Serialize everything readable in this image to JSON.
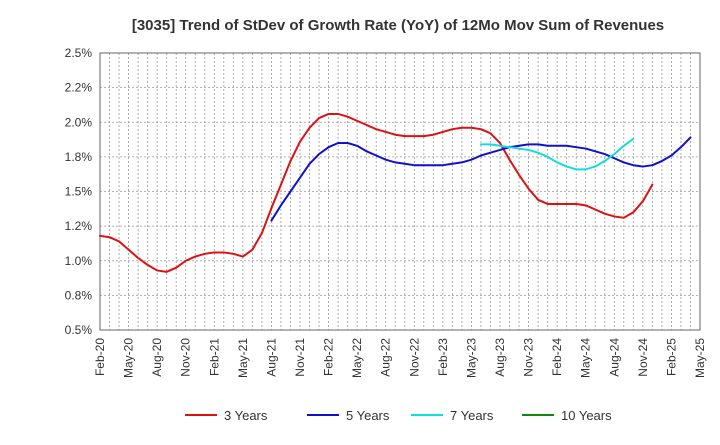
{
  "chart_data": {
    "type": "line",
    "title": "[3035]  Trend of StDev of Growth Rate (YoY) of 12Mo Mov Sum of Revenues",
    "xlabel": "",
    "ylabel": "",
    "ylim": [
      0.5,
      2.5
    ],
    "y_ticks": [
      "0.5%",
      "0.8%",
      "1.0%",
      "1.2%",
      "1.5%",
      "1.8%",
      "2.0%",
      "2.2%",
      "2.5%"
    ],
    "x_tick_labels": [
      "Feb-20",
      "May-20",
      "Aug-20",
      "Nov-20",
      "Feb-21",
      "May-21",
      "Aug-21",
      "Nov-21",
      "Feb-22",
      "May-22",
      "Aug-22",
      "Nov-22",
      "Feb-23",
      "May-23",
      "Aug-23",
      "Nov-23",
      "Feb-24",
      "May-24",
      "Aug-24",
      "Nov-24",
      "Feb-25",
      "May-25"
    ],
    "grid": true,
    "legend_position": "bottom",
    "series": [
      {
        "name": "3 Years",
        "color": "#dd1111",
        "start_index": 0,
        "values": [
          1.18,
          1.17,
          1.14,
          1.08,
          1.02,
          0.97,
          0.93,
          0.92,
          0.95,
          1.0,
          1.03,
          1.05,
          1.06,
          1.06,
          1.05,
          1.03,
          1.08,
          1.2,
          1.38,
          1.55,
          1.72,
          1.86,
          1.96,
          2.03,
          2.06,
          2.06,
          2.04,
          2.01,
          1.98,
          1.95,
          1.93,
          1.91,
          1.9,
          1.9,
          1.9,
          1.91,
          1.93,
          1.95,
          1.96,
          1.96,
          1.95,
          1.92,
          1.85,
          1.73,
          1.62,
          1.52,
          1.44,
          1.41,
          1.41,
          1.41,
          1.41,
          1.4,
          1.37,
          1.34,
          1.32,
          1.31,
          1.35,
          1.43,
          1.55
        ]
      },
      {
        "name": "5 Years",
        "color": "#1111cc",
        "start_index": 18,
        "values": [
          1.29,
          1.4,
          1.5,
          1.6,
          1.7,
          1.77,
          1.82,
          1.85,
          1.85,
          1.83,
          1.79,
          1.76,
          1.73,
          1.71,
          1.7,
          1.69,
          1.69,
          1.69,
          1.69,
          1.7,
          1.71,
          1.73,
          1.76,
          1.78,
          1.8,
          1.82,
          1.83,
          1.84,
          1.84,
          1.83,
          1.83,
          1.83,
          1.82,
          1.81,
          1.79,
          1.77,
          1.74,
          1.71,
          1.69,
          1.68,
          1.69,
          1.72,
          1.76,
          1.82,
          1.89
        ]
      },
      {
        "name": "7 Years",
        "color": "#11dddd",
        "start_index": 40,
        "values": [
          1.84,
          1.84,
          1.83,
          1.82,
          1.81,
          1.8,
          1.78,
          1.75,
          1.71,
          1.68,
          1.66,
          1.66,
          1.68,
          1.72,
          1.77,
          1.83,
          1.88
        ]
      },
      {
        "name": "10 Years",
        "color": "#118811",
        "start_index": 0,
        "values": []
      }
    ]
  }
}
